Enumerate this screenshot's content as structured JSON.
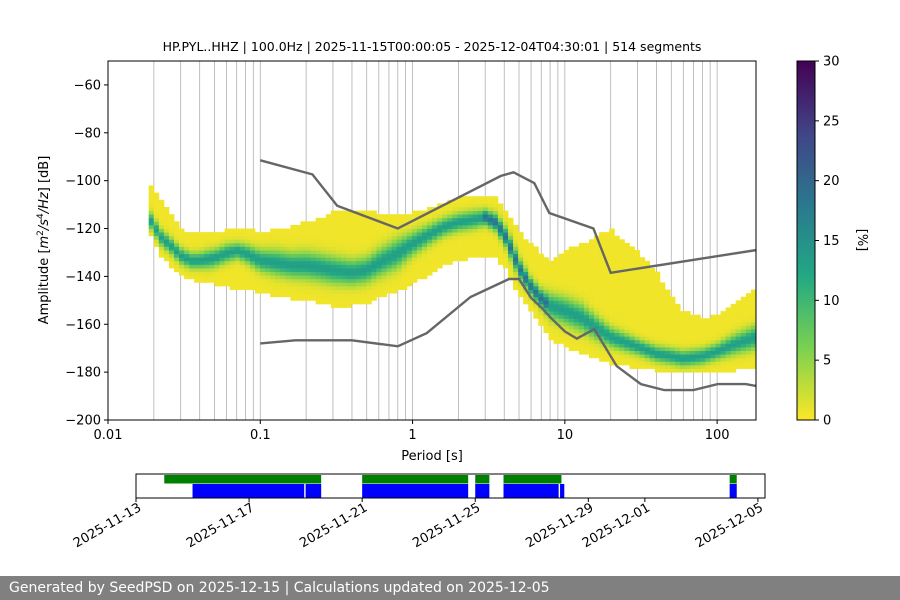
{
  "chart_data": [
    {
      "type": "heatmap",
      "title": "HP.PYL..HHZ | 100.0Hz | 2025-11-15T00:00:05 - 2025-12-04T04:30:01 | 514 segments",
      "xlabel": "Period [s]",
      "ylabel": "Amplitude [m²/s⁴/Hz] [dB]",
      "ylabel_parts": {
        "pre": "Amplitude [",
        "m": "m",
        "sup1": "2",
        "s": "/s",
        "sup2": "4",
        "hz": "/Hz",
        "post": "] [dB]"
      },
      "xscale": "log",
      "xlim": [
        0.01,
        180
      ],
      "ylim": [
        -200,
        -50
      ],
      "xticks": [
        0.01,
        0.1,
        1,
        10,
        100
      ],
      "xtick_labels": [
        "0.01",
        "0.1",
        "1",
        "10",
        "100"
      ],
      "yticks": [
        -200,
        -180,
        -160,
        -140,
        -120,
        -100,
        -80,
        -60
      ],
      "ytick_labels": [
        "−200",
        "−180",
        "−160",
        "−140",
        "−120",
        "−100",
        "−80",
        "−60"
      ],
      "grid": "vertical",
      "colorbar": {
        "label": "[%]",
        "range": [
          0,
          30
        ],
        "ticks": [
          0,
          5,
          10,
          15,
          20,
          25,
          30
        ],
        "tick_labels": [
          "0",
          "5",
          "10",
          "15",
          "20",
          "25",
          "30"
        ],
        "colors": [
          "#fde725",
          "#7ad151",
          "#22a884",
          "#2a788e",
          "#414487",
          "#440154"
        ]
      },
      "psd_mode": {
        "name": "mode",
        "x": [
          0.019,
          0.022,
          0.026,
          0.03,
          0.035,
          0.04,
          0.05,
          0.06,
          0.07,
          0.08,
          0.1,
          0.13,
          0.16,
          0.2,
          0.25,
          0.3,
          0.4,
          0.5,
          0.6,
          0.8,
          1,
          1.3,
          1.6,
          2,
          2.5,
          3,
          3.5,
          4,
          4.5,
          5,
          6,
          7,
          8,
          10,
          13,
          16,
          20,
          30,
          40,
          50,
          60,
          80,
          100,
          130,
          180
        ],
        "y": [
          -117,
          -124,
          -128,
          -132,
          -134,
          -134,
          -133,
          -131,
          -130,
          -131,
          -134,
          -135,
          -136,
          -136,
          -137,
          -138,
          -139,
          -138,
          -135,
          -131,
          -127,
          -123,
          -120,
          -118,
          -117,
          -116,
          -118,
          -123,
          -130,
          -137,
          -145,
          -150,
          -153,
          -155,
          -158,
          -162,
          -166,
          -170,
          -173,
          -174,
          -175,
          -174,
          -172,
          -169,
          -166
        ],
        "upper": [
          -103,
          -108,
          -115,
          -120,
          -123,
          -123,
          -123,
          -121,
          -121,
          -121,
          -122,
          -121,
          -120,
          -118,
          -116,
          -114,
          -113,
          -114,
          -114,
          -115,
          -114,
          -112,
          -110,
          -108,
          -107,
          -107,
          -108,
          -112,
          -117,
          -122,
          -127,
          -131,
          -134,
          -130,
          -127,
          -124,
          -121,
          -130,
          -139,
          -148,
          -155,
          -158,
          -157,
          -152,
          -146
        ],
        "lower": [
          -123,
          -132,
          -137,
          -140,
          -142,
          -143,
          -144,
          -145,
          -146,
          -146,
          -148,
          -149,
          -150,
          -151,
          -152,
          -153,
          -153,
          -152,
          -150,
          -147,
          -144,
          -140,
          -136,
          -134,
          -133,
          -132,
          -133,
          -137,
          -143,
          -149,
          -155,
          -161,
          -167,
          -170,
          -173,
          -175,
          -177,
          -179,
          -180,
          -181,
          -181,
          -181,
          -181,
          -180,
          -179
        ]
      },
      "nhnm": {
        "name": "New High Noise Model",
        "x": [
          0.1,
          0.22,
          0.32,
          0.8,
          3.8,
          4.6,
          6.3,
          7.9,
          15.4,
          20,
          180
        ],
        "y": [
          -91.5,
          -97.4,
          -110.5,
          -120,
          -98,
          -96.5,
          -101,
          -113.5,
          -120,
          -138.5,
          -129
        ]
      },
      "nlnm": {
        "name": "New Low Noise Model",
        "x": [
          0.1,
          0.17,
          0.4,
          0.8,
          1.24,
          2.4,
          4.3,
          5,
          6,
          7,
          8,
          10,
          12,
          15.6,
          21.9,
          31.6,
          45,
          70,
          101,
          154,
          180
        ],
        "y": [
          -168,
          -166.7,
          -166.7,
          -169.2,
          -163.7,
          -148.6,
          -141.1,
          -141.1,
          -149,
          -153,
          -157,
          -163,
          -166,
          -162,
          -177.5,
          -185,
          -187.5,
          -187.5,
          -185,
          -185,
          -185.8
        ]
      }
    },
    {
      "type": "timeline",
      "xlim": [
        "2025-11-13",
        "2025-12-05 06:00"
      ],
      "xtick_labels": [
        "2025-11-13",
        "2025-11-17",
        "2025-11-21",
        "2025-11-25",
        "2025-11-29",
        "2025-12-01",
        "2025-12-05"
      ],
      "xtick_days": [
        0,
        4,
        8,
        12,
        16,
        18,
        22
      ],
      "series": [
        {
          "name": "data available",
          "color": "#008000",
          "segments": [
            [
              1.0,
              6.55
            ],
            [
              8.0,
              11.75
            ],
            [
              12.0,
              12.5
            ],
            [
              13.0,
              15.05
            ],
            [
              21.0,
              21.25
            ]
          ]
        },
        {
          "name": "psd computed",
          "color": "#0000ff",
          "segments": [
            [
              2.0,
              5.95
            ],
            [
              6.0,
              6.55
            ],
            [
              8.0,
              11.75
            ],
            [
              12.0,
              12.5
            ],
            [
              13.0,
              14.95
            ],
            [
              15.0,
              15.15
            ],
            [
              21.0,
              21.25
            ]
          ]
        }
      ]
    }
  ],
  "footer": {
    "text": "Generated by SeedPSD on 2025-12-15 | Calculations updated on 2025-12-05"
  }
}
